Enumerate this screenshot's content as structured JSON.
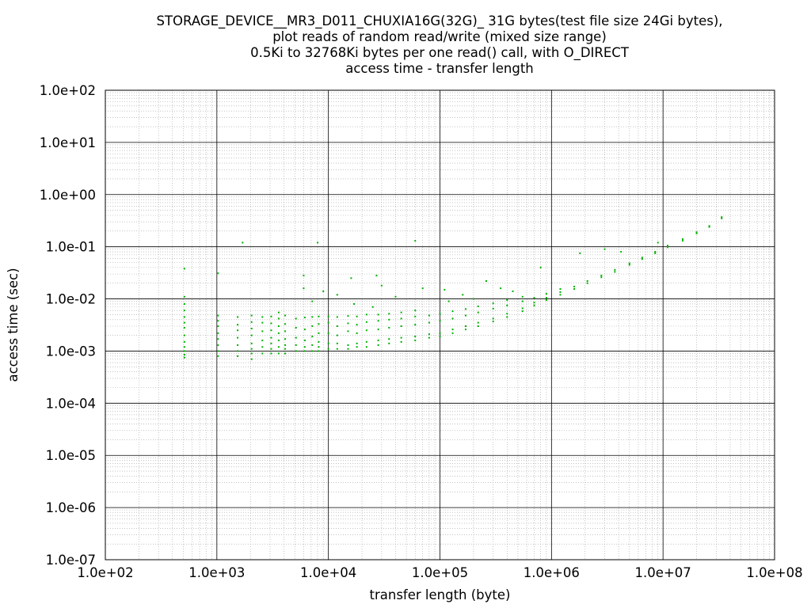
{
  "chart_data": {
    "type": "scatter",
    "title_lines": [
      "STORAGE_DEVICE__MR3_D011_CHUXIA16G(32G)_ 31G bytes(test file size 24Gi bytes),",
      "plot reads of random read/write (mixed size range)",
      "0.5Ki to 32768Ki bytes per one read() call, with O_DIRECT",
      "access time - transfer length"
    ],
    "xlabel": "transfer length (byte)",
    "ylabel": "access time (sec)",
    "x_scale": "log",
    "y_scale": "log",
    "xlim": [
      100,
      100000000
    ],
    "ylim": [
      1e-07,
      100
    ],
    "x_ticks": [
      {
        "value": 100,
        "label": "1.0e+02"
      },
      {
        "value": 1000,
        "label": "1.0e+03"
      },
      {
        "value": 10000,
        "label": "1.0e+04"
      },
      {
        "value": 100000,
        "label": "1.0e+05"
      },
      {
        "value": 1000000,
        "label": "1.0e+06"
      },
      {
        "value": 10000000,
        "label": "1.0e+07"
      },
      {
        "value": 100000000,
        "label": "1.0e+08"
      }
    ],
    "y_ticks": [
      {
        "value": 100,
        "label": "1.0e+02"
      },
      {
        "value": 10,
        "label": "1.0e+01"
      },
      {
        "value": 1,
        "label": "1.0e+00"
      },
      {
        "value": 0.1,
        "label": "1.0e-01"
      },
      {
        "value": 0.01,
        "label": "1.0e-02"
      },
      {
        "value": 0.001,
        "label": "1.0e-03"
      },
      {
        "value": 0.0001,
        "label": "1.0e-04"
      },
      {
        "value": 1e-05,
        "label": "1.0e-05"
      },
      {
        "value": 1e-06,
        "label": "1.0e-06"
      },
      {
        "value": 1e-07,
        "label": "1.0e-07"
      }
    ],
    "grid": true,
    "minor_grid": true,
    "legend": "none",
    "point_color": "#00b000",
    "series": [
      {
        "points": [
          [
            512,
            0.00075
          ],
          [
            512,
            0.00085
          ],
          [
            512,
            0.001
          ],
          [
            512,
            0.0012
          ],
          [
            512,
            0.0015
          ],
          [
            512,
            0.002
          ],
          [
            512,
            0.0028
          ],
          [
            512,
            0.0035
          ],
          [
            512,
            0.0045
          ],
          [
            512,
            0.006
          ],
          [
            512,
            0.008
          ],
          [
            512,
            0.011
          ],
          [
            512,
            0.038
          ],
          [
            1024,
            0.0008
          ],
          [
            1024,
            0.001
          ],
          [
            1024,
            0.0013
          ],
          [
            1024,
            0.0017
          ],
          [
            1024,
            0.0022
          ],
          [
            1024,
            0.003
          ],
          [
            1024,
            0.0038
          ],
          [
            1024,
            0.0048
          ],
          [
            1024,
            0.031
          ],
          [
            1536,
            0.0008
          ],
          [
            1536,
            0.001
          ],
          [
            1536,
            0.0013
          ],
          [
            1536,
            0.0018
          ],
          [
            1536,
            0.0025
          ],
          [
            1536,
            0.0032
          ],
          [
            1536,
            0.0045
          ],
          [
            2048,
            0.0007
          ],
          [
            2048,
            0.0009
          ],
          [
            2048,
            0.0011
          ],
          [
            2048,
            0.0014
          ],
          [
            2048,
            0.002
          ],
          [
            2048,
            0.0027
          ],
          [
            2048,
            0.0036
          ],
          [
            2048,
            0.0048
          ],
          [
            2560,
            0.0009
          ],
          [
            2560,
            0.0012
          ],
          [
            2560,
            0.0016
          ],
          [
            2560,
            0.0024
          ],
          [
            2560,
            0.0035
          ],
          [
            2560,
            0.0045
          ],
          [
            3072,
            0.0009
          ],
          [
            3072,
            0.0011
          ],
          [
            3072,
            0.0014
          ],
          [
            3072,
            0.0018
          ],
          [
            3072,
            0.0025
          ],
          [
            3072,
            0.0034
          ],
          [
            3072,
            0.0046
          ],
          [
            3584,
            0.0009
          ],
          [
            3584,
            0.0012
          ],
          [
            3584,
            0.0016
          ],
          [
            3584,
            0.0022
          ],
          [
            3584,
            0.003
          ],
          [
            3584,
            0.0042
          ],
          [
            3584,
            0.0055
          ],
          [
            4096,
            0.0009
          ],
          [
            4096,
            0.0011
          ],
          [
            4096,
            0.0013
          ],
          [
            4096,
            0.0017
          ],
          [
            4096,
            0.0024
          ],
          [
            4096,
            0.0033
          ],
          [
            4096,
            0.0048
          ],
          [
            5120,
            0.001
          ],
          [
            5120,
            0.0013
          ],
          [
            5120,
            0.0018
          ],
          [
            5120,
            0.0028
          ],
          [
            5120,
            0.0042
          ],
          [
            6144,
            0.001
          ],
          [
            6144,
            0.0012
          ],
          [
            6144,
            0.0016
          ],
          [
            6144,
            0.0026
          ],
          [
            6144,
            0.0044
          ],
          [
            7168,
            0.001
          ],
          [
            7168,
            0.0013
          ],
          [
            7168,
            0.0019
          ],
          [
            7168,
            0.003
          ],
          [
            7168,
            0.0045
          ],
          [
            7168,
            0.009
          ],
          [
            8192,
            0.001
          ],
          [
            8192,
            0.0012
          ],
          [
            8192,
            0.0015
          ],
          [
            8192,
            0.0022
          ],
          [
            8192,
            0.0033
          ],
          [
            8192,
            0.0046
          ],
          [
            10000,
            0.0011
          ],
          [
            10000,
            0.0014
          ],
          [
            10000,
            0.0022
          ],
          [
            10000,
            0.0035
          ],
          [
            10000,
            0.0046
          ],
          [
            12000,
            0.0011
          ],
          [
            12000,
            0.0014
          ],
          [
            12000,
            0.002
          ],
          [
            12000,
            0.003
          ],
          [
            12000,
            0.0045
          ],
          [
            15000,
            0.0011
          ],
          [
            15000,
            0.0013
          ],
          [
            15000,
            0.0024
          ],
          [
            15000,
            0.0034
          ],
          [
            15000,
            0.0047
          ],
          [
            18000,
            0.0012
          ],
          [
            18000,
            0.0014
          ],
          [
            18000,
            0.0022
          ],
          [
            18000,
            0.0032
          ],
          [
            18000,
            0.0046
          ],
          [
            22000,
            0.0012
          ],
          [
            22000,
            0.0015
          ],
          [
            22000,
            0.0025
          ],
          [
            22000,
            0.0036
          ],
          [
            22000,
            0.005
          ],
          [
            28000,
            0.0013
          ],
          [
            28000,
            0.0016
          ],
          [
            28000,
            0.0026
          ],
          [
            28000,
            0.0038
          ],
          [
            28000,
            0.005
          ],
          [
            35000,
            0.0014
          ],
          [
            35000,
            0.0017
          ],
          [
            35000,
            0.0028
          ],
          [
            35000,
            0.004
          ],
          [
            35000,
            0.0052
          ],
          [
            45000,
            0.0015
          ],
          [
            45000,
            0.0018
          ],
          [
            45000,
            0.003
          ],
          [
            45000,
            0.0042
          ],
          [
            45000,
            0.0055
          ],
          [
            60000,
            0.0016
          ],
          [
            60000,
            0.0019
          ],
          [
            60000,
            0.0032
          ],
          [
            60000,
            0.0046
          ],
          [
            60000,
            0.006
          ],
          [
            80000,
            0.0018
          ],
          [
            80000,
            0.0021
          ],
          [
            80000,
            0.0035
          ],
          [
            80000,
            0.0048
          ],
          [
            100000,
            0.0019
          ],
          [
            100000,
            0.0022
          ],
          [
            100000,
            0.0038
          ],
          [
            100000,
            0.0052
          ],
          [
            130000,
            0.0022
          ],
          [
            130000,
            0.0026
          ],
          [
            130000,
            0.0042
          ],
          [
            130000,
            0.0058
          ],
          [
            170000,
            0.0026
          ],
          [
            170000,
            0.003
          ],
          [
            170000,
            0.0048
          ],
          [
            170000,
            0.0064
          ],
          [
            220000,
            0.003
          ],
          [
            220000,
            0.0035
          ],
          [
            220000,
            0.0055
          ],
          [
            220000,
            0.0072
          ],
          [
            300000,
            0.0037
          ],
          [
            300000,
            0.0042
          ],
          [
            300000,
            0.0065
          ],
          [
            300000,
            0.0082
          ],
          [
            400000,
            0.0045
          ],
          [
            400000,
            0.0052
          ],
          [
            400000,
            0.0075
          ],
          [
            400000,
            0.0095
          ],
          [
            550000,
            0.0058
          ],
          [
            550000,
            0.0066
          ],
          [
            550000,
            0.009
          ],
          [
            550000,
            0.011
          ],
          [
            700000,
            0.0075
          ],
          [
            700000,
            0.0085
          ],
          [
            700000,
            0.0105
          ],
          [
            900000,
            0.0095
          ],
          [
            900000,
            0.0105
          ],
          [
            900000,
            0.0125
          ],
          [
            1200000,
            0.012
          ],
          [
            1200000,
            0.0135
          ],
          [
            1200000,
            0.0155
          ],
          [
            1600000,
            0.0155
          ],
          [
            1600000,
            0.0172
          ],
          [
            2100000,
            0.02
          ],
          [
            2100000,
            0.022
          ],
          [
            2800000,
            0.026
          ],
          [
            2800000,
            0.028
          ],
          [
            3700000,
            0.033
          ],
          [
            3700000,
            0.036
          ],
          [
            5000000,
            0.045
          ],
          [
            5000000,
            0.048
          ],
          [
            6500000,
            0.058
          ],
          [
            6500000,
            0.062
          ],
          [
            8500000,
            0.075
          ],
          [
            8500000,
            0.08
          ],
          [
            11000000,
            0.098
          ],
          [
            11000000,
            0.105
          ],
          [
            15000000,
            0.13
          ],
          [
            15000000,
            0.14
          ],
          [
            20000000,
            0.18
          ],
          [
            20000000,
            0.19
          ],
          [
            26000000,
            0.24
          ],
          [
            26000000,
            0.25
          ],
          [
            33554432,
            0.35
          ],
          [
            33554432,
            0.37
          ],
          [
            1700,
            0.12
          ],
          [
            8000,
            0.12
          ],
          [
            60000,
            0.13
          ],
          [
            6000,
            0.028
          ],
          [
            16000,
            0.025
          ],
          [
            27000,
            0.028
          ],
          [
            30000,
            0.018
          ],
          [
            70000,
            0.016
          ],
          [
            110000,
            0.015
          ],
          [
            160000,
            0.012
          ],
          [
            260000,
            0.022
          ],
          [
            350000,
            0.016
          ],
          [
            800000,
            0.04
          ],
          [
            1800000,
            0.075
          ],
          [
            3000000,
            0.09
          ],
          [
            4200000,
            0.08
          ],
          [
            9000000,
            0.12
          ],
          [
            6000,
            0.016
          ],
          [
            9000,
            0.014
          ],
          [
            12000,
            0.012
          ],
          [
            17000,
            0.008
          ],
          [
            25000,
            0.007
          ],
          [
            40000,
            0.011
          ],
          [
            120000,
            0.009
          ],
          [
            200000,
            0.01
          ],
          [
            450000,
            0.014
          ]
        ]
      }
    ]
  }
}
